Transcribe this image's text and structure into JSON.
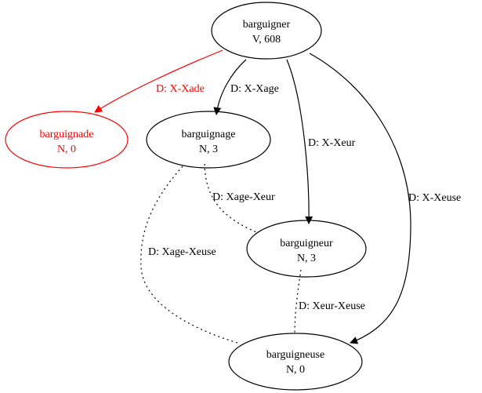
{
  "colors": {
    "default": "#000000",
    "highlight": "#ff0000"
  },
  "nodes": {
    "root": {
      "word": "barguigner",
      "info": "V, 608"
    },
    "ade": {
      "word": "barguignade",
      "info": "N, 0"
    },
    "age": {
      "word": "barguignage",
      "info": "N, 3"
    },
    "eur": {
      "word": "barguigneur",
      "info": "N, 3"
    },
    "euse": {
      "word": "barguigneuse",
      "info": "N, 0"
    }
  },
  "edges": {
    "root_ade": {
      "label": "D: X-Xade"
    },
    "root_age": {
      "label": "D: X-Xage"
    },
    "root_eur": {
      "label": "D: X-Xeur"
    },
    "root_euse": {
      "label": "D: X-Xeuse"
    },
    "age_eur": {
      "label": "D: Xage-Xeur"
    },
    "age_euse": {
      "label": "D: Xage-Xeuse"
    },
    "eur_euse": {
      "label": "D: Xeur-Xeuse"
    }
  }
}
